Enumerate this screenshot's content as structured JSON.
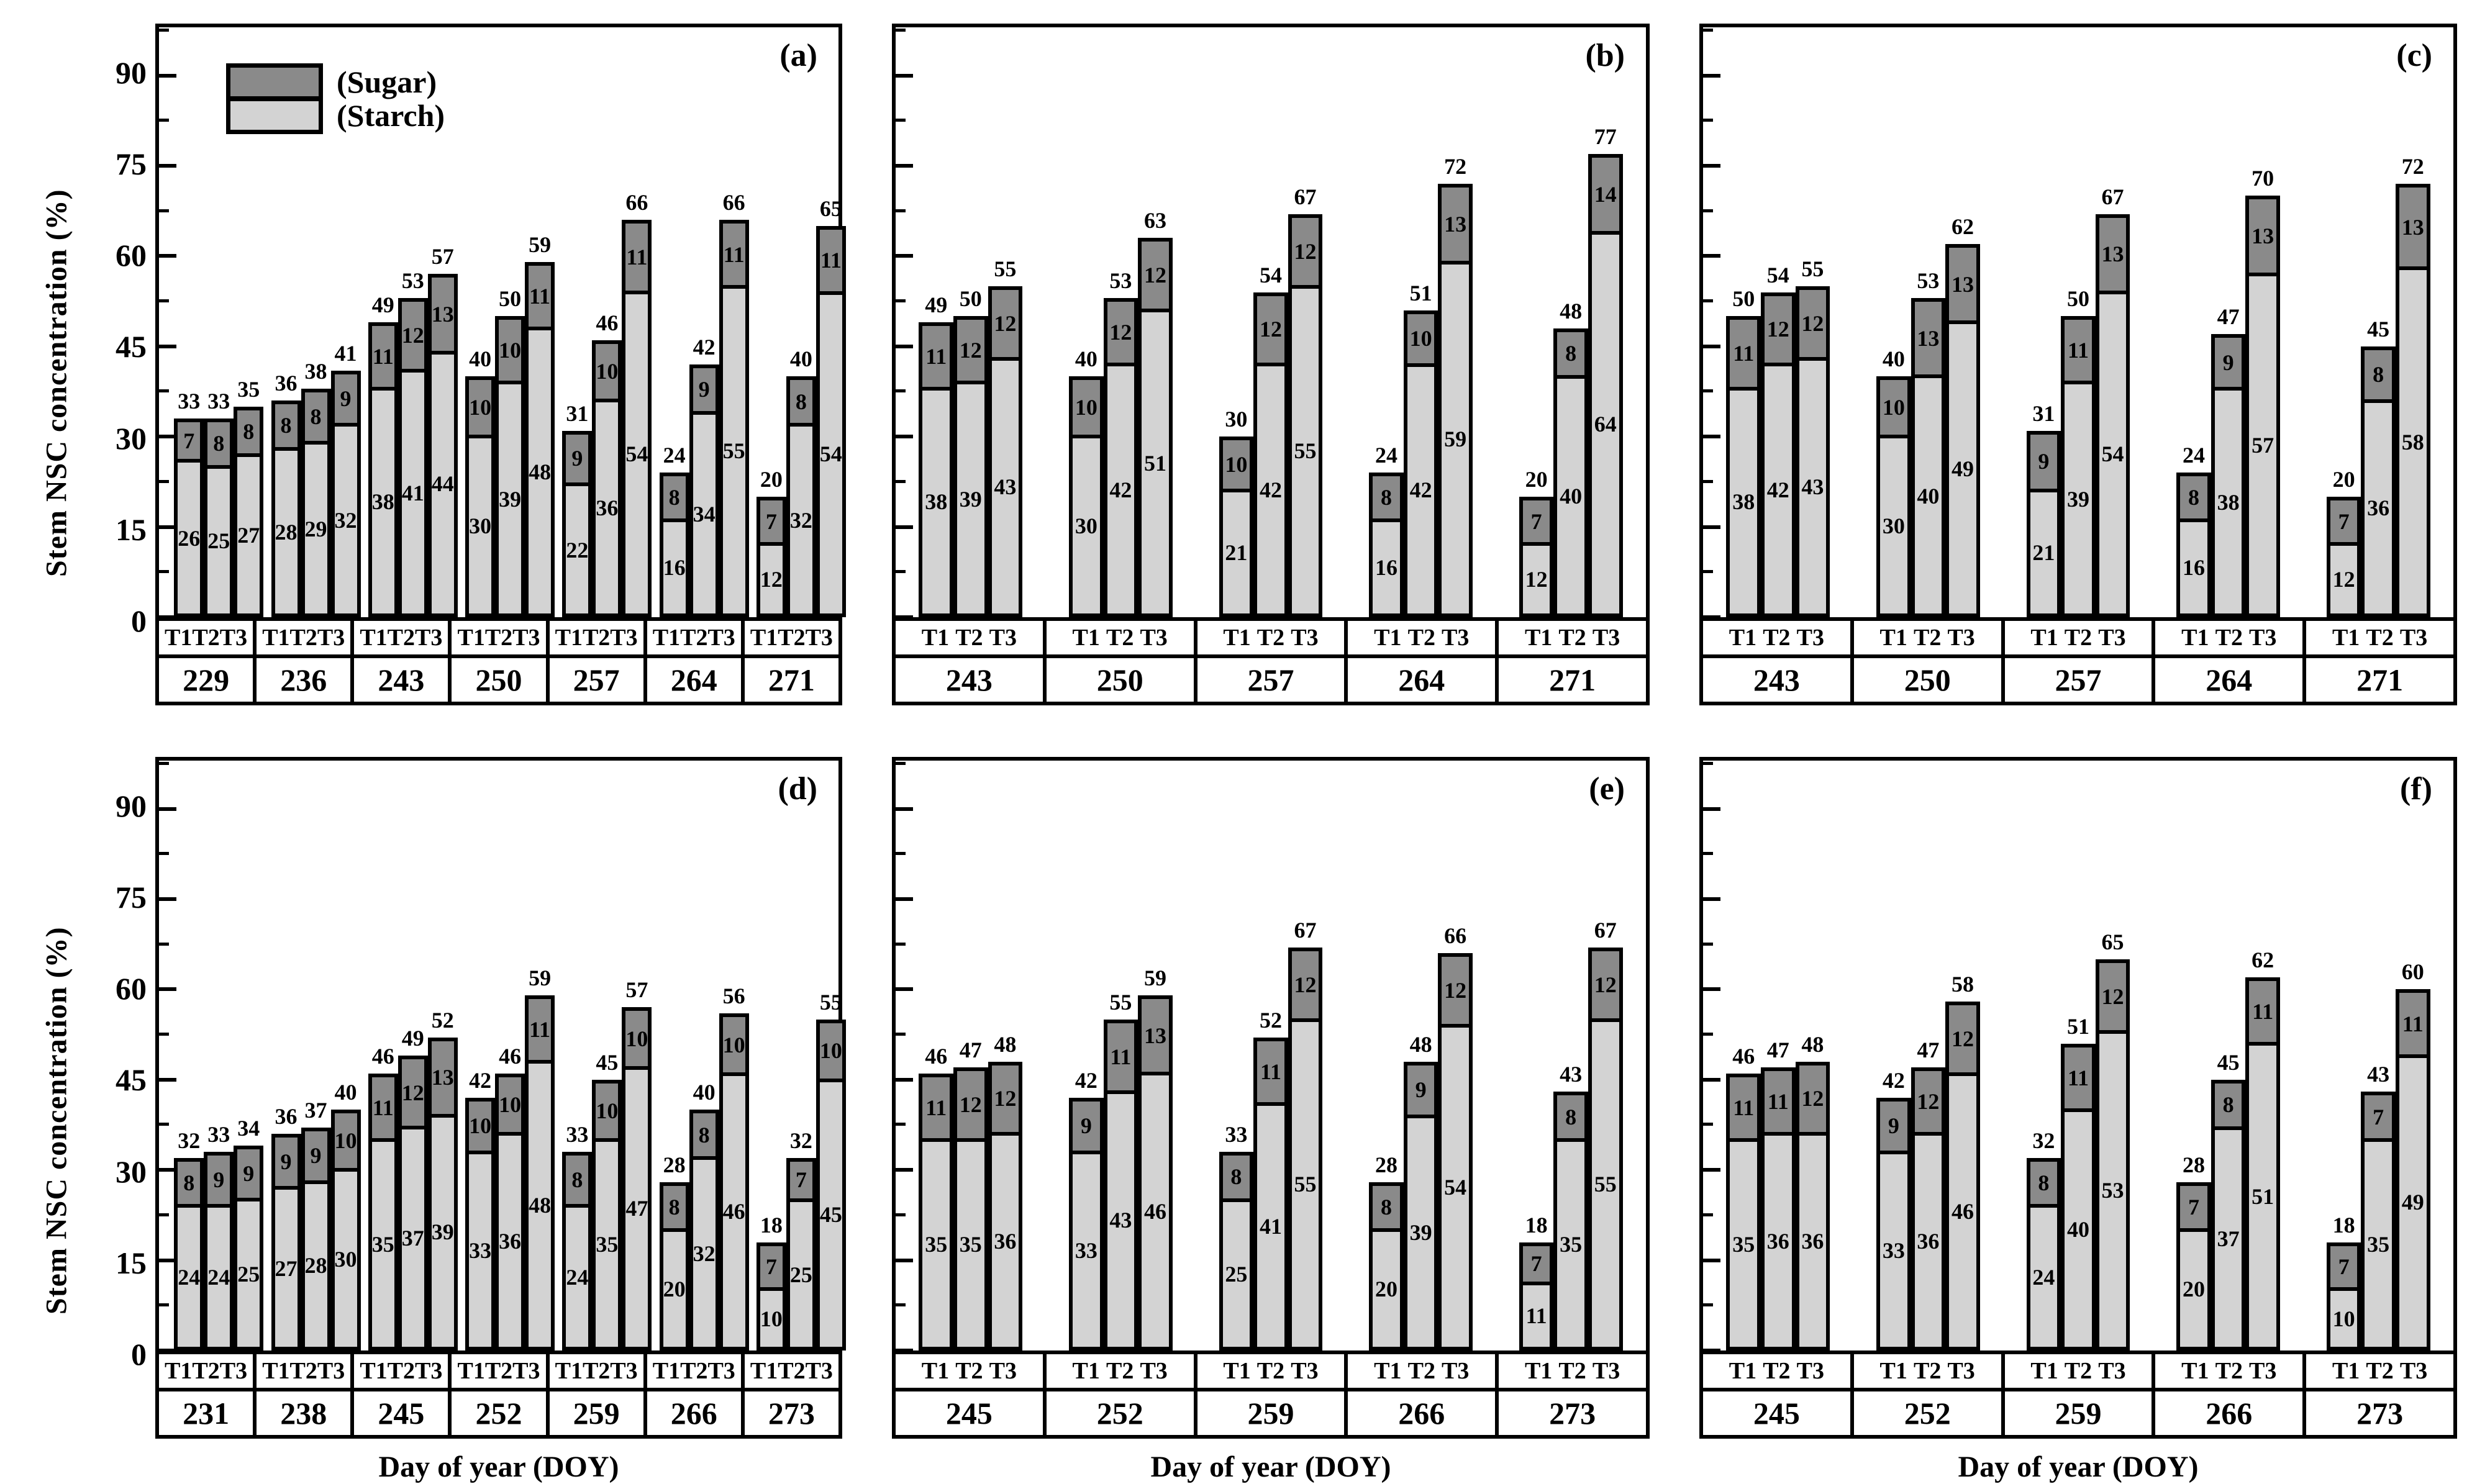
{
  "figure": {
    "y_axis_label": "Stem NSC concentration (%)",
    "x_axis_label": "Day of year (DOY)",
    "legend": {
      "sugar_label": "(Sugar)",
      "starch_label": "(Starch)"
    },
    "colors": {
      "sugar": "#8a8a8a",
      "starch": "#d3d3d3",
      "border": "#000000"
    }
  },
  "chart_data": {
    "type": "bar",
    "stacked": true,
    "series_order": [
      "Starch (bottom)",
      "Sugar (top)"
    ],
    "treatments": [
      "T1",
      "T2",
      "T3"
    ],
    "y_axis": {
      "label": "Stem NSC concentration (%)",
      "major_ticks": [
        0,
        15,
        30,
        45,
        60,
        75,
        90
      ],
      "minor_ticks": [
        7.5,
        22.5,
        37.5,
        52.5,
        67.5,
        82.5,
        97.5
      ],
      "ymax": 98,
      "grid": false
    },
    "x_axis": {
      "label": "Day of year (DOY)"
    },
    "legend_position": "top-left of panel (a)",
    "panels": [
      {
        "id": "a",
        "letter": "(a)",
        "row": 1,
        "col": 1,
        "compact": true,
        "show_y_labels": true,
        "show_x_title": false,
        "show_legend": true,
        "groups": [
          {
            "doy": "229",
            "bars": [
              {
                "starch": 26,
                "sugar": 7,
                "total": 33
              },
              {
                "starch": 25,
                "sugar": 8,
                "total": 33
              },
              {
                "starch": 27,
                "sugar": 8,
                "total": 35
              }
            ]
          },
          {
            "doy": "236",
            "bars": [
              {
                "starch": 28,
                "sugar": 8,
                "total": 36
              },
              {
                "starch": 29,
                "sugar": 8,
                "total": 38
              },
              {
                "starch": 32,
                "sugar": 9,
                "total": 41
              }
            ]
          },
          {
            "doy": "243",
            "bars": [
              {
                "starch": 38,
                "sugar": 11,
                "total": 49
              },
              {
                "starch": 41,
                "sugar": 12,
                "total": 53
              },
              {
                "starch": 44,
                "sugar": 13,
                "total": 57
              }
            ]
          },
          {
            "doy": "250",
            "bars": [
              {
                "starch": 30,
                "sugar": 10,
                "total": 40
              },
              {
                "starch": 39,
                "sugar": 10,
                "total": 50
              },
              {
                "starch": 48,
                "sugar": 11,
                "total": 59
              }
            ]
          },
          {
            "doy": "257",
            "bars": [
              {
                "starch": 22,
                "sugar": 9,
                "total": 31
              },
              {
                "starch": 36,
                "sugar": 10,
                "total": 46
              },
              {
                "starch": 54,
                "sugar": 11,
                "total": 66
              }
            ]
          },
          {
            "doy": "264",
            "bars": [
              {
                "starch": 16,
                "sugar": 8,
                "total": 24
              },
              {
                "starch": 34,
                "sugar": 9,
                "total": 42
              },
              {
                "starch": 55,
                "sugar": 11,
                "total": 66
              }
            ]
          },
          {
            "doy": "271",
            "bars": [
              {
                "starch": 12,
                "sugar": 7,
                "total": 20
              },
              {
                "starch": 32,
                "sugar": 8,
                "total": 40
              },
              {
                "starch": 54,
                "sugar": 11,
                "total": 65
              }
            ]
          }
        ]
      },
      {
        "id": "b",
        "letter": "(b)",
        "row": 1,
        "col": 2,
        "compact": false,
        "show_y_labels": false,
        "show_x_title": false,
        "show_legend": false,
        "groups": [
          {
            "doy": "243",
            "bars": [
              {
                "starch": 38,
                "sugar": 11,
                "total": 49
              },
              {
                "starch": 39,
                "sugar": 12,
                "total": 50
              },
              {
                "starch": 43,
                "sugar": 12,
                "total": 55
              }
            ]
          },
          {
            "doy": "250",
            "bars": [
              {
                "starch": 30,
                "sugar": 10,
                "total": 40
              },
              {
                "starch": 42,
                "sugar": 12,
                "total": 53
              },
              {
                "starch": 51,
                "sugar": 12,
                "total": 63
              }
            ]
          },
          {
            "doy": "257",
            "bars": [
              {
                "starch": 21,
                "sugar": 10,
                "total": 30
              },
              {
                "starch": 42,
                "sugar": 12,
                "total": 54
              },
              {
                "starch": 55,
                "sugar": 12,
                "total": 67
              }
            ]
          },
          {
            "doy": "264",
            "bars": [
              {
                "starch": 16,
                "sugar": 8,
                "total": 24
              },
              {
                "starch": 42,
                "sugar": 10,
                "total": 51
              },
              {
                "starch": 59,
                "sugar": 13,
                "total": 72
              }
            ]
          },
          {
            "doy": "271",
            "bars": [
              {
                "starch": 12,
                "sugar": 7,
                "total": 20
              },
              {
                "starch": 40,
                "sugar": 8,
                "total": 48
              },
              {
                "starch": 64,
                "sugar": 14,
                "total": 77
              }
            ]
          }
        ]
      },
      {
        "id": "c",
        "letter": "(c)",
        "row": 1,
        "col": 3,
        "compact": false,
        "show_y_labels": false,
        "show_x_title": false,
        "show_legend": false,
        "groups": [
          {
            "doy": "243",
            "bars": [
              {
                "starch": 38,
                "sugar": 11,
                "total": 50
              },
              {
                "starch": 42,
                "sugar": 12,
                "total": 54
              },
              {
                "starch": 43,
                "sugar": 12,
                "total": 55
              }
            ]
          },
          {
            "doy": "250",
            "bars": [
              {
                "starch": 30,
                "sugar": 10,
                "total": 40
              },
              {
                "starch": 40,
                "sugar": 13,
                "total": 53
              },
              {
                "starch": 49,
                "sugar": 13,
                "total": 62
              }
            ]
          },
          {
            "doy": "257",
            "bars": [
              {
                "starch": 21,
                "sugar": 9,
                "total": 31
              },
              {
                "starch": 39,
                "sugar": 11,
                "total": 50
              },
              {
                "starch": 54,
                "sugar": 13,
                "total": 67
              }
            ]
          },
          {
            "doy": "264",
            "bars": [
              {
                "starch": 16,
                "sugar": 8,
                "total": 24
              },
              {
                "starch": 38,
                "sugar": 9,
                "total": 47
              },
              {
                "starch": 57,
                "sugar": 13,
                "total": 70
              }
            ]
          },
          {
            "doy": "271",
            "bars": [
              {
                "starch": 12,
                "sugar": 7,
                "total": 20
              },
              {
                "starch": 36,
                "sugar": 8,
                "total": 45
              },
              {
                "starch": 58,
                "sugar": 13,
                "total": 72
              }
            ]
          }
        ]
      },
      {
        "id": "d",
        "letter": "(d)",
        "row": 2,
        "col": 1,
        "compact": true,
        "show_y_labels": true,
        "show_x_title": true,
        "show_legend": false,
        "groups": [
          {
            "doy": "231",
            "bars": [
              {
                "starch": 24,
                "sugar": 8,
                "total": 32
              },
              {
                "starch": 24,
                "sugar": 9,
                "total": 33
              },
              {
                "starch": 25,
                "sugar": 9,
                "total": 34
              }
            ]
          },
          {
            "doy": "238",
            "bars": [
              {
                "starch": 27,
                "sugar": 9,
                "total": 36
              },
              {
                "starch": 28,
                "sugar": 9,
                "total": 37
              },
              {
                "starch": 30,
                "sugar": 10,
                "total": 40
              }
            ]
          },
          {
            "doy": "245",
            "bars": [
              {
                "starch": 35,
                "sugar": 11,
                "total": 46
              },
              {
                "starch": 37,
                "sugar": 12,
                "total": 49
              },
              {
                "starch": 39,
                "sugar": 13,
                "total": 52
              }
            ]
          },
          {
            "doy": "252",
            "bars": [
              {
                "starch": 33,
                "sugar": 10,
                "total": 42
              },
              {
                "starch": 36,
                "sugar": 10,
                "total": 46
              },
              {
                "starch": 48,
                "sugar": 11,
                "total": 59
              }
            ]
          },
          {
            "doy": "259",
            "bars": [
              {
                "starch": 24,
                "sugar": 8,
                "total": 33
              },
              {
                "starch": 35,
                "sugar": 10,
                "total": 45
              },
              {
                "starch": 47,
                "sugar": 10,
                "total": 57
              }
            ]
          },
          {
            "doy": "266",
            "bars": [
              {
                "starch": 20,
                "sugar": 8,
                "total": 28
              },
              {
                "starch": 32,
                "sugar": 8,
                "total": 40
              },
              {
                "starch": 46,
                "sugar": 10,
                "total": 56
              }
            ]
          },
          {
            "doy": "273",
            "bars": [
              {
                "starch": 10,
                "sugar": 7,
                "total": 18
              },
              {
                "starch": 25,
                "sugar": 7,
                "total": 32
              },
              {
                "starch": 45,
                "sugar": 10,
                "total": 55
              }
            ]
          }
        ]
      },
      {
        "id": "e",
        "letter": "(e)",
        "row": 2,
        "col": 2,
        "compact": false,
        "show_y_labels": false,
        "show_x_title": true,
        "show_legend": false,
        "groups": [
          {
            "doy": "245",
            "bars": [
              {
                "starch": 35,
                "sugar": 11,
                "total": 46
              },
              {
                "starch": 35,
                "sugar": 12,
                "total": 47
              },
              {
                "starch": 36,
                "sugar": 12,
                "total": 48
              }
            ]
          },
          {
            "doy": "252",
            "bars": [
              {
                "starch": 33,
                "sugar": 9,
                "total": 42
              },
              {
                "starch": 43,
                "sugar": 11,
                "total": 55
              },
              {
                "starch": 46,
                "sugar": 13,
                "total": 59
              }
            ]
          },
          {
            "doy": "259",
            "bars": [
              {
                "starch": 25,
                "sugar": 8,
                "total": 33
              },
              {
                "starch": 41,
                "sugar": 11,
                "total": 52
              },
              {
                "starch": 55,
                "sugar": 12,
                "total": 67
              }
            ]
          },
          {
            "doy": "266",
            "bars": [
              {
                "starch": 20,
                "sugar": 8,
                "total": 28
              },
              {
                "starch": 39,
                "sugar": 9,
                "total": 48
              },
              {
                "starch": 54,
                "sugar": 12,
                "total": 66
              }
            ]
          },
          {
            "doy": "273",
            "bars": [
              {
                "starch": 11,
                "sugar": 7,
                "total": 18
              },
              {
                "starch": 35,
                "sugar": 8,
                "total": 43
              },
              {
                "starch": 55,
                "sugar": 12,
                "total": 67
              }
            ]
          }
        ]
      },
      {
        "id": "f",
        "letter": "(f)",
        "row": 2,
        "col": 3,
        "compact": false,
        "show_y_labels": false,
        "show_x_title": true,
        "show_legend": false,
        "groups": [
          {
            "doy": "245",
            "bars": [
              {
                "starch": 35,
                "sugar": 11,
                "total": 46
              },
              {
                "starch": 36,
                "sugar": 11,
                "total": 47
              },
              {
                "starch": 36,
                "sugar": 12,
                "total": 48
              }
            ]
          },
          {
            "doy": "252",
            "bars": [
              {
                "starch": 33,
                "sugar": 9,
                "total": 42
              },
              {
                "starch": 36,
                "sugar": 12,
                "total": 47
              },
              {
                "starch": 46,
                "sugar": 12,
                "total": 58
              }
            ]
          },
          {
            "doy": "259",
            "bars": [
              {
                "starch": 24,
                "sugar": 8,
                "total": 32
              },
              {
                "starch": 40,
                "sugar": 11,
                "total": 51
              },
              {
                "starch": 53,
                "sugar": 12,
                "total": 65
              }
            ]
          },
          {
            "doy": "266",
            "bars": [
              {
                "starch": 20,
                "sugar": 7,
                "total": 28
              },
              {
                "starch": 37,
                "sugar": 8,
                "total": 45
              },
              {
                "starch": 51,
                "sugar": 11,
                "total": 62
              }
            ]
          },
          {
            "doy": "273",
            "bars": [
              {
                "starch": 10,
                "sugar": 7,
                "total": 18
              },
              {
                "starch": 35,
                "sugar": 7,
                "total": 43
              },
              {
                "starch": 49,
                "sugar": 11,
                "total": 60
              }
            ]
          }
        ]
      }
    ]
  }
}
